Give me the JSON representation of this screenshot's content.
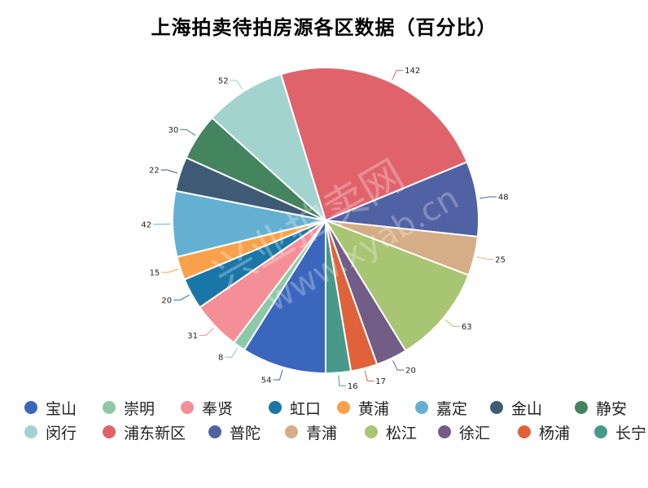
{
  "chart_data": {
    "type": "pie",
    "title": "上海拍卖待拍房源各区数据（百分比）",
    "categories": [
      "宝山",
      "崇明",
      "奉贤",
      "虹口",
      "黄浦",
      "嘉定",
      "金山",
      "静安",
      "闵行",
      "浦东新区",
      "普陀",
      "青浦",
      "松江",
      "徐汇",
      "杨浦",
      "长宁"
    ],
    "values": [
      54,
      8,
      31,
      20,
      15,
      42,
      22,
      30,
      52,
      142,
      48,
      25,
      63,
      20,
      17,
      16
    ],
    "colors": [
      "#3a67bd",
      "#8ec9a7",
      "#f48f97",
      "#1b76a8",
      "#f9a14a",
      "#64b0d2",
      "#3e5a74",
      "#44845f",
      "#a3d3cf",
      "#e0636b",
      "#5062a3",
      "#d5ad86",
      "#a8c573",
      "#725d87",
      "#df623a",
      "#47998a"
    ],
    "legend_position": "bottom",
    "start": "bottom, clockwise",
    "total": 605
  },
  "title": "上海拍卖待拍房源各区数据（百分比）",
  "watermark": {
    "line1": "兴业拍卖网",
    "line2": "www.xyab.cn"
  }
}
